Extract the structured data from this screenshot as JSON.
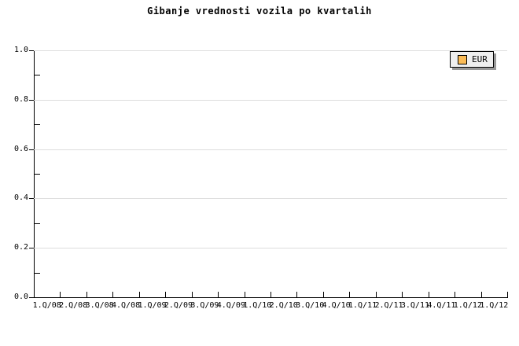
{
  "title": "Gibanje vrednosti vozila po kvartalih",
  "legend": {
    "position": "top-right",
    "items": [
      {
        "label": "EUR",
        "swatch_color": "#FBBC57"
      }
    ]
  },
  "colors": {
    "background": "#FFFFFF",
    "axis": "#000000",
    "text": "#000000",
    "grid": "#DDDDDD",
    "legend_bg": "#EFEFEF",
    "legend_shadow": "#999999",
    "series_eur": "#FBBC57"
  },
  "chart_data": {
    "type": "line",
    "title": "Gibanje vrednosti vozila po kvartalih",
    "xlabel": "",
    "ylabel": "",
    "categories": [
      "1.Q/08",
      "2.Q/08",
      "3.Q/08",
      "4.Q/08",
      "1.Q/09",
      "2.Q/09",
      "3.Q/09",
      "4.Q/09",
      "1.Q/10",
      "2.Q/10",
      "3.Q/10",
      "4.Q/10",
      "1.Q/11",
      "2.Q/11",
      "3.Q/11",
      "4.Q/11",
      "1.Q/12",
      "1.Q/12"
    ],
    "series": [
      {
        "name": "EUR",
        "values": []
      }
    ],
    "ylim": [
      0.0,
      1.0
    ],
    "y_ticks": [
      0.0,
      0.2,
      0.4,
      0.6,
      0.8,
      1.0
    ],
    "y_tick_labels": [
      "0.0",
      "0.2",
      "0.4",
      "0.6",
      "0.8",
      "1.0"
    ],
    "y_minor_ticks": [
      0.1,
      0.3,
      0.5,
      0.7,
      0.9
    ],
    "grid": "horizontal-major-only",
    "legend_position": "top-right",
    "plot_empty": true
  }
}
